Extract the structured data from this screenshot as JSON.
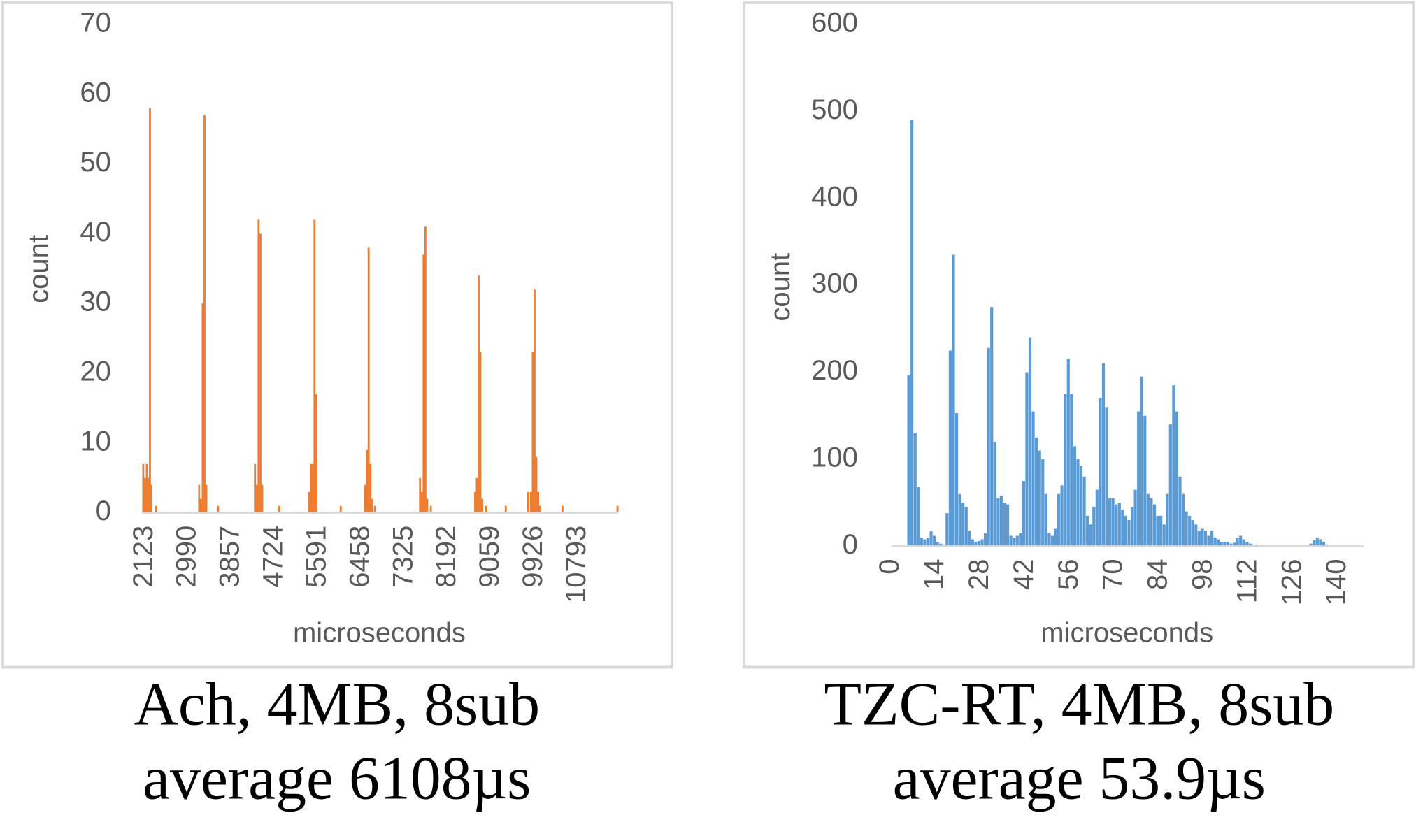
{
  "chart_data": [
    {
      "type": "bar",
      "color": "#ed7d31",
      "xlabel": "microseconds",
      "ylabel": "count",
      "caption": [
        "Ach, 4MB, 8sub",
        "average 6108µs"
      ],
      "x": [
        2069,
        2105,
        2141,
        2177,
        2204,
        2231,
        2322,
        3189,
        3225,
        3261,
        3297,
        3333,
        3568,
        4308,
        4344,
        4380,
        4417,
        4453,
        4796,
        5392,
        5428,
        5464,
        5500,
        5536,
        6024,
        6512,
        6548,
        6584,
        6620,
        6656,
        6710,
        7613,
        7649,
        7685,
        7721,
        7757,
        7830,
        8715,
        8751,
        8787,
        8823,
        8859,
        8931,
        9329,
        9780,
        9835,
        9871,
        9907,
        9943,
        9979,
        10015,
        10466,
        11568
      ],
      "values": [
        7,
        5,
        7,
        5,
        58,
        4,
        1,
        4,
        2,
        30,
        57,
        4,
        1,
        7,
        4,
        42,
        40,
        4,
        1,
        3,
        7,
        7,
        42,
        17,
        1,
        4,
        9,
        38,
        7,
        2,
        1,
        5,
        3,
        37,
        41,
        2,
        1,
        3,
        5,
        34,
        23,
        2,
        1,
        1,
        3,
        3,
        23,
        32,
        8,
        3,
        1,
        1,
        1
      ],
      "xlim": [
        2060,
        11610
      ],
      "xticks": [
        2123,
        2990,
        3857,
        4724,
        5591,
        6458,
        7325,
        8192,
        9059,
        9926,
        10793
      ],
      "ylim": [
        0,
        70
      ],
      "yticks": [
        0,
        10,
        20,
        30,
        40,
        50,
        60,
        70
      ]
    },
    {
      "type": "bar",
      "color": "#5b9bd5",
      "xlabel": "microseconds",
      "ylabel": "count",
      "caption": [
        "TZC-RT, 4MB, 8sub",
        "average 53.9µs"
      ],
      "x": [
        5,
        6,
        7,
        8,
        9,
        10,
        11,
        12,
        13,
        14,
        15,
        16,
        17,
        18,
        19,
        20,
        21,
        22,
        23,
        24,
        25,
        26,
        27,
        28,
        29,
        30,
        31,
        32,
        33,
        34,
        35,
        36,
        37,
        38,
        39,
        40,
        41,
        42,
        43,
        44,
        45,
        46,
        47,
        48,
        49,
        50,
        51,
        52,
        53,
        54,
        55,
        56,
        57,
        58,
        59,
        60,
        61,
        62,
        63,
        64,
        65,
        66,
        67,
        68,
        69,
        70,
        71,
        72,
        73,
        74,
        75,
        76,
        77,
        78,
        79,
        80,
        81,
        82,
        83,
        84,
        85,
        86,
        87,
        88,
        89,
        90,
        91,
        92,
        93,
        94,
        95,
        96,
        97,
        98,
        99,
        100,
        101,
        102,
        103,
        104,
        105,
        106,
        107,
        108,
        109,
        110,
        111,
        112,
        113,
        114,
        115,
        116,
        117,
        118,
        119,
        120,
        121,
        122,
        123,
        124,
        125,
        126,
        127,
        128,
        129,
        130,
        131,
        132,
        133,
        134,
        135,
        136
      ],
      "values": [
        197,
        490,
        130,
        68,
        10,
        8,
        10,
        17,
        12,
        5,
        3,
        2,
        38,
        225,
        335,
        153,
        60,
        50,
        45,
        18,
        8,
        5,
        6,
        8,
        15,
        228,
        275,
        120,
        55,
        58,
        50,
        48,
        12,
        10,
        12,
        15,
        75,
        200,
        240,
        155,
        125,
        110,
        100,
        60,
        15,
        12,
        20,
        60,
        70,
        175,
        215,
        175,
        115,
        100,
        92,
        80,
        35,
        25,
        45,
        65,
        170,
        210,
        160,
        55,
        55,
        48,
        50,
        42,
        35,
        30,
        45,
        65,
        155,
        195,
        150,
        60,
        55,
        48,
        35,
        35,
        25,
        60,
        140,
        185,
        155,
        80,
        60,
        40,
        35,
        30,
        25,
        18,
        20,
        18,
        12,
        18,
        10,
        8,
        5,
        5,
        5,
        3,
        4,
        10,
        12,
        8,
        5,
        3,
        2,
        2,
        1,
        1,
        0,
        0,
        0,
        0,
        0,
        0,
        0,
        0,
        0,
        0,
        0,
        0,
        0,
        0,
        3,
        7,
        10,
        8,
        5,
        2
      ],
      "xlim": [
        0,
        148
      ],
      "xticks": [
        0,
        14,
        28,
        42,
        56,
        70,
        84,
        98,
        112,
        126,
        140
      ],
      "ylim": [
        0,
        600
      ],
      "yticks": [
        0,
        100,
        200,
        300,
        400,
        500,
        600
      ]
    }
  ]
}
